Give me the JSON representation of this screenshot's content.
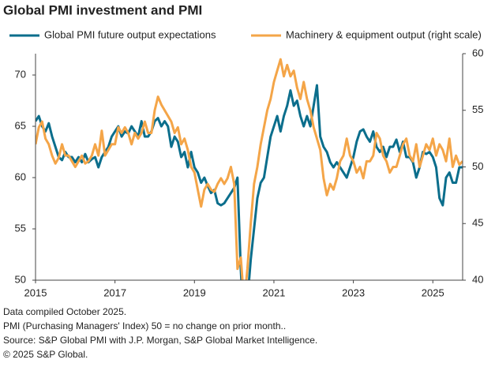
{
  "chart_data": {
    "type": "line",
    "title": "Global PMI investment and PMI",
    "notes": [
      "Data compiled October 2025.",
      "PMI (Purchasing Managers' Index) 50 = no change on prior month..",
      "Source: S&P Global PMI with J.P. Morgan, S&P Global Market Intelligence.",
      "© 2025 S&P Global."
    ],
    "xlim": [
      2015,
      2025.75
    ],
    "xticks": [
      2015,
      2017,
      2019,
      2021,
      2023,
      2025
    ],
    "ylim": [
      50,
      72.08
    ],
    "yticks": [
      50,
      55,
      60,
      65,
      70
    ],
    "y2lim": [
      40,
      60
    ],
    "y2ticks": [
      40,
      45,
      50,
      55,
      60
    ],
    "legend": "top",
    "x": [
      2015,
      2015.083,
      2015.167,
      2015.25,
      2015.333,
      2015.417,
      2015.5,
      2015.583,
      2015.667,
      2015.75,
      2015.833,
      2015.917,
      2016,
      2016.083,
      2016.167,
      2016.25,
      2016.333,
      2016.417,
      2016.5,
      2016.583,
      2016.667,
      2016.75,
      2016.833,
      2016.917,
      2017,
      2017.083,
      2017.167,
      2017.25,
      2017.333,
      2017.417,
      2017.5,
      2017.583,
      2017.667,
      2017.75,
      2017.833,
      2017.917,
      2018,
      2018.083,
      2018.167,
      2018.25,
      2018.333,
      2018.417,
      2018.5,
      2018.583,
      2018.667,
      2018.75,
      2018.833,
      2018.917,
      2019,
      2019.083,
      2019.167,
      2019.25,
      2019.333,
      2019.417,
      2019.5,
      2019.583,
      2019.667,
      2019.75,
      2019.833,
      2019.917,
      2020,
      2020.083,
      2020.167,
      2020.25,
      2020.333,
      2020.417,
      2020.5,
      2020.583,
      2020.667,
      2020.75,
      2020.833,
      2020.917,
      2021,
      2021.083,
      2021.167,
      2021.25,
      2021.333,
      2021.417,
      2021.5,
      2021.583,
      2021.667,
      2021.75,
      2021.833,
      2021.917,
      2022,
      2022.083,
      2022.167,
      2022.25,
      2022.333,
      2022.417,
      2022.5,
      2022.583,
      2022.667,
      2022.75,
      2022.833,
      2022.917,
      2023,
      2023.083,
      2023.167,
      2023.25,
      2023.333,
      2023.417,
      2023.5,
      2023.583,
      2023.667,
      2023.75,
      2023.833,
      2023.917,
      2024,
      2024.083,
      2024.167,
      2024.25,
      2024.333,
      2024.417,
      2024.5,
      2024.583,
      2024.667,
      2024.75,
      2024.833,
      2024.917,
      2025,
      2025.083,
      2025.167,
      2025.25,
      2025.333,
      2025.417,
      2025.5,
      2025.583,
      2025.667,
      2025.75
    ],
    "series": [
      {
        "name": "Global PMI future output expectations",
        "color": "#0b6e8c",
        "axis": "y",
        "values": [
          65.5,
          66,
          65,
          64.5,
          65.3,
          64,
          63,
          62,
          61.7,
          62.5,
          62,
          62,
          61.5,
          62,
          61.5,
          62.3,
          61.5,
          61.8,
          62,
          61,
          62,
          62.5,
          63,
          64,
          64.5,
          65,
          64,
          64.5,
          64.3,
          65,
          64.5,
          64,
          65.5,
          64,
          64,
          64.5,
          65.5,
          65.8,
          65,
          65.5,
          65,
          63,
          64,
          63.5,
          62,
          62.5,
          61,
          62.5,
          61,
          60.5,
          59.5,
          60,
          59.2,
          58.5,
          58.8,
          57.5,
          57.3,
          57.5,
          58,
          58.5,
          59,
          60,
          51,
          45,
          48,
          52,
          55,
          58,
          59.5,
          60,
          62,
          64,
          65,
          66,
          64.5,
          66,
          67,
          68.5,
          67,
          67.5,
          66,
          65,
          66,
          65,
          67,
          69,
          64,
          63,
          62.5,
          61.5,
          61,
          61.5,
          61,
          60.5,
          60,
          61,
          62,
          63.5,
          64.5,
          64.7,
          64,
          63.5,
          64.5,
          63,
          62.5,
          63,
          62,
          63,
          63,
          63.7,
          62.5,
          63.5,
          62,
          62,
          61.5,
          60,
          61,
          62.5,
          62.3,
          62.5,
          62,
          61,
          58,
          57.3,
          60,
          60.5,
          59.5,
          59.5,
          61,
          61
        ]
      },
      {
        "name": "Machinery & equipment output (right scale)",
        "color": "#f4a548",
        "axis": "y2",
        "values": [
          52,
          53.5,
          54,
          52.5,
          52,
          51,
          50.3,
          50.8,
          52,
          51,
          51,
          50.5,
          50,
          50.5,
          51,
          50.3,
          50.5,
          51,
          52,
          51,
          53.2,
          51,
          51.5,
          52,
          52,
          53.5,
          53,
          53.5,
          53,
          52,
          53,
          52.5,
          53,
          54,
          53,
          53,
          55,
          56.2,
          55.5,
          55,
          54.5,
          54,
          53,
          53.5,
          52,
          52.5,
          51.5,
          50,
          49.5,
          48,
          46.5,
          48,
          48.5,
          48,
          47.8,
          48.5,
          49,
          48.5,
          49,
          50,
          48.5,
          41,
          42,
          38,
          41,
          45,
          48.5,
          50,
          52,
          53.5,
          55,
          56,
          57.5,
          58.5,
          59.5,
          58,
          59,
          58,
          58.5,
          57,
          56,
          57.5,
          56,
          55,
          53.5,
          52.5,
          51.5,
          49,
          47.5,
          48.5,
          48,
          49,
          50.5,
          51,
          52.5,
          51,
          50.5,
          49.5,
          50,
          49,
          50.5,
          50.5,
          51,
          53,
          52.5,
          51,
          50.5,
          49.5,
          50,
          50,
          51,
          52,
          52.5,
          51,
          50.5,
          52,
          50,
          51,
          52,
          51.5,
          52.5,
          51,
          52,
          51.5,
          50.5,
          52.5,
          50,
          51,
          50.2,
          50.5
        ]
      }
    ]
  }
}
